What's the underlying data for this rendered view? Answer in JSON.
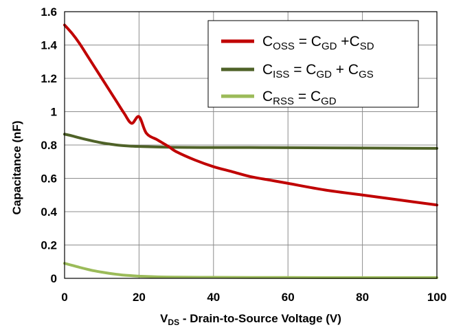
{
  "chart_data": {
    "type": "line",
    "title": "",
    "xlabel": {
      "main": "V",
      "sub": "DS",
      "rest": " - Drain-to-Source Voltage (V)"
    },
    "ylabel": "Capacitance (nF)",
    "xlim": [
      0,
      100
    ],
    "ylim": [
      0,
      1.6
    ],
    "x_ticks": [
      "0",
      "20",
      "40",
      "60",
      "80",
      "100"
    ],
    "y_ticks": [
      "0",
      "0.2",
      "0.4",
      "0.6",
      "0.8",
      "1",
      "1.2",
      "1.4",
      "1.6"
    ],
    "grid": true,
    "legend_position": "top-right",
    "series": [
      {
        "id": "coss",
        "color": "#c00000",
        "legend": [
          {
            "t": "C"
          },
          {
            "t": "OSS",
            "sub": true
          },
          {
            "t": " = C"
          },
          {
            "t": "GD",
            "sub": true
          },
          {
            "t": " +C"
          },
          {
            "t": "SD",
            "sub": true
          }
        ],
        "x": [
          0,
          2,
          4,
          6,
          8,
          10,
          12,
          14,
          16,
          18,
          20,
          22,
          25,
          28,
          30,
          35,
          40,
          45,
          50,
          55,
          60,
          70,
          80,
          90,
          100
        ],
        "y": [
          1.52,
          1.47,
          1.41,
          1.34,
          1.27,
          1.2,
          1.13,
          1.06,
          0.99,
          0.93,
          0.97,
          0.87,
          0.83,
          0.79,
          0.76,
          0.71,
          0.67,
          0.64,
          0.61,
          0.59,
          0.57,
          0.53,
          0.5,
          0.47,
          0.44
        ]
      },
      {
        "id": "ciss",
        "color": "#4f6228",
        "legend": [
          {
            "t": "C"
          },
          {
            "t": "ISS",
            "sub": true
          },
          {
            "t": " = C"
          },
          {
            "t": "GD",
            "sub": true
          },
          {
            "t": " + C"
          },
          {
            "t": "GS",
            "sub": true
          }
        ],
        "x": [
          0,
          2,
          4,
          6,
          8,
          10,
          12,
          14,
          16,
          18,
          20,
          25,
          30,
          40,
          50,
          60,
          70,
          80,
          90,
          100
        ],
        "y": [
          0.865,
          0.855,
          0.843,
          0.832,
          0.822,
          0.813,
          0.806,
          0.8,
          0.796,
          0.793,
          0.791,
          0.788,
          0.786,
          0.785,
          0.785,
          0.784,
          0.783,
          0.782,
          0.781,
          0.78
        ]
      },
      {
        "id": "crss",
        "color": "#9bbb59",
        "legend": [
          {
            "t": "C"
          },
          {
            "t": "RSS",
            "sub": true
          },
          {
            "t": " = C"
          },
          {
            "t": "GD",
            "sub": true
          }
        ],
        "x": [
          0,
          2,
          4,
          6,
          8,
          10,
          12,
          14,
          16,
          18,
          20,
          25,
          30,
          40,
          50,
          60,
          70,
          80,
          90,
          100
        ],
        "y": [
          0.09,
          0.078,
          0.066,
          0.055,
          0.045,
          0.037,
          0.03,
          0.024,
          0.019,
          0.016,
          0.013,
          0.009,
          0.007,
          0.006,
          0.005,
          0.005,
          0.004,
          0.004,
          0.004,
          0.004
        ]
      }
    ]
  }
}
